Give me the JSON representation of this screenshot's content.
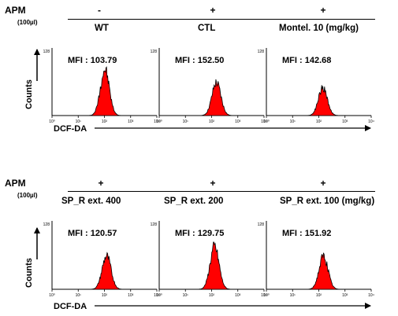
{
  "figure": {
    "apm_label": "APM",
    "apm_unit": "(100µl)",
    "counts_label": "Counts",
    "xaxis_label": "DCF-DA",
    "y_max_tick": "128",
    "x_tick_labels": [
      "10⁰",
      "10¹",
      "10²",
      "10³",
      "10⁴"
    ]
  },
  "top_panel": {
    "signs": [
      "-",
      "+",
      "+"
    ],
    "conditions": [
      "WT",
      "CTL",
      "Montel. 10 (mg/kg)"
    ],
    "mfi": [
      "MFI : 103.79",
      "MFI : 152.50",
      "MFI : 142.68"
    ]
  },
  "bottom_panel": {
    "signs": [
      "+",
      "+",
      "+"
    ],
    "conditions": [
      "SP_R ext. 400",
      "SP_R ext. 200",
      "SP_R ext. 100 (mg/kg)"
    ],
    "mfi": [
      "MFI : 120.57",
      "MFI : 129.75",
      "MFI : 151.92"
    ]
  },
  "chart_data": [
    {
      "type": "area",
      "xlabel": "DCF-DA",
      "ylabel": "Counts",
      "x_scale": "log",
      "xlim": [
        1,
        10000
      ],
      "ylim": [
        0,
        128
      ],
      "fill_color": "#ff0000",
      "series": [
        {
          "name": "WT",
          "mfi": 103.79,
          "peak_y": 90
        },
        {
          "name": "CTL",
          "mfi": 152.5,
          "peak_y": 64
        },
        {
          "name": "Montel. 10 (mg/kg)",
          "mfi": 142.68,
          "peak_y": 54
        }
      ]
    },
    {
      "type": "area",
      "xlabel": "DCF-DA",
      "ylabel": "Counts",
      "x_scale": "log",
      "xlim": [
        1,
        10000
      ],
      "ylim": [
        0,
        128
      ],
      "fill_color": "#ff0000",
      "series": [
        {
          "name": "SP_R ext. 400",
          "mfi": 120.57,
          "peak_y": 64
        },
        {
          "name": "SP_R ext. 200",
          "mfi": 129.75,
          "peak_y": 82
        },
        {
          "name": "SP_R ext. 100 (mg/kg)",
          "mfi": 151.92,
          "peak_y": 64
        }
      ]
    }
  ]
}
